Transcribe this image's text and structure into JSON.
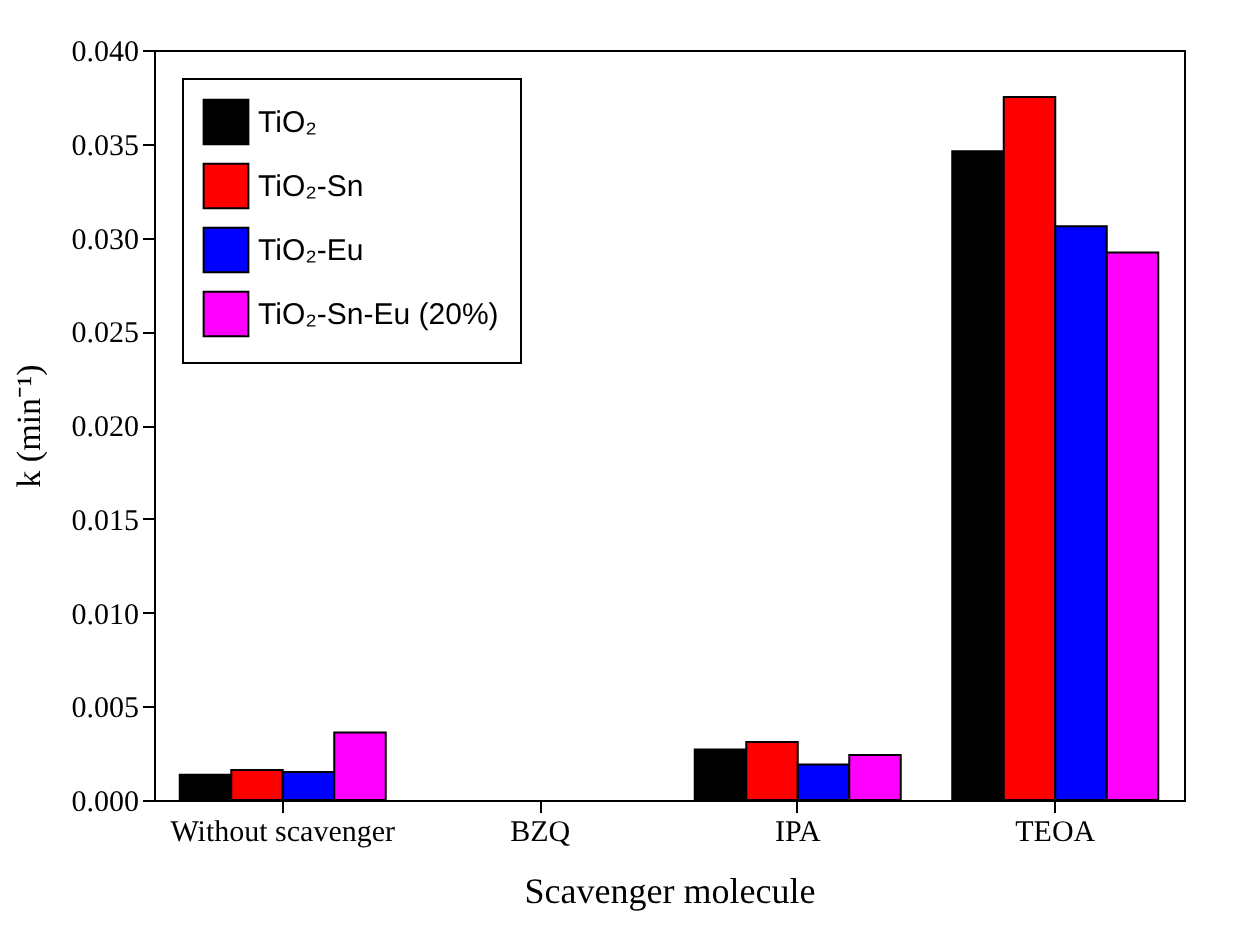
{
  "chart_data": {
    "type": "bar",
    "xlabel": "Scavenger molecule",
    "ylabel": "k (min⁻¹)",
    "categories": [
      "Without scavenger",
      "BZQ",
      "IPA",
      "TEOA"
    ],
    "series": [
      {
        "name": "TiO₂",
        "color": "#000000",
        "values": [
          0.00135,
          null,
          0.0027,
          0.0346
        ]
      },
      {
        "name": "TiO₂-Sn",
        "color": "#ff0000",
        "values": [
          0.0016,
          null,
          0.0031,
          0.0375
        ]
      },
      {
        "name": "TiO₂-Eu",
        "color": "#0000ff",
        "values": [
          0.0015,
          null,
          0.0019,
          0.0306
        ]
      },
      {
        "name": "TiO₂-Sn-Eu (20%)",
        "color": "#ff00ff",
        "values": [
          0.0036,
          null,
          0.0024,
          0.0292
        ]
      }
    ],
    "ylim": [
      0,
      0.04
    ],
    "yticks": [
      {
        "value": 0,
        "label": "0.000"
      },
      0.005,
      {
        "value": 0.01,
        "label": "0.010"
      },
      0.015,
      {
        "value": 0.02,
        "label": "0.020"
      },
      0.025,
      {
        "value": 0.03,
        "label": "0.030"
      },
      0.035,
      {
        "value": 0.04,
        "label": "0.040"
      }
    ],
    "grid": false,
    "legend": "top left"
  }
}
